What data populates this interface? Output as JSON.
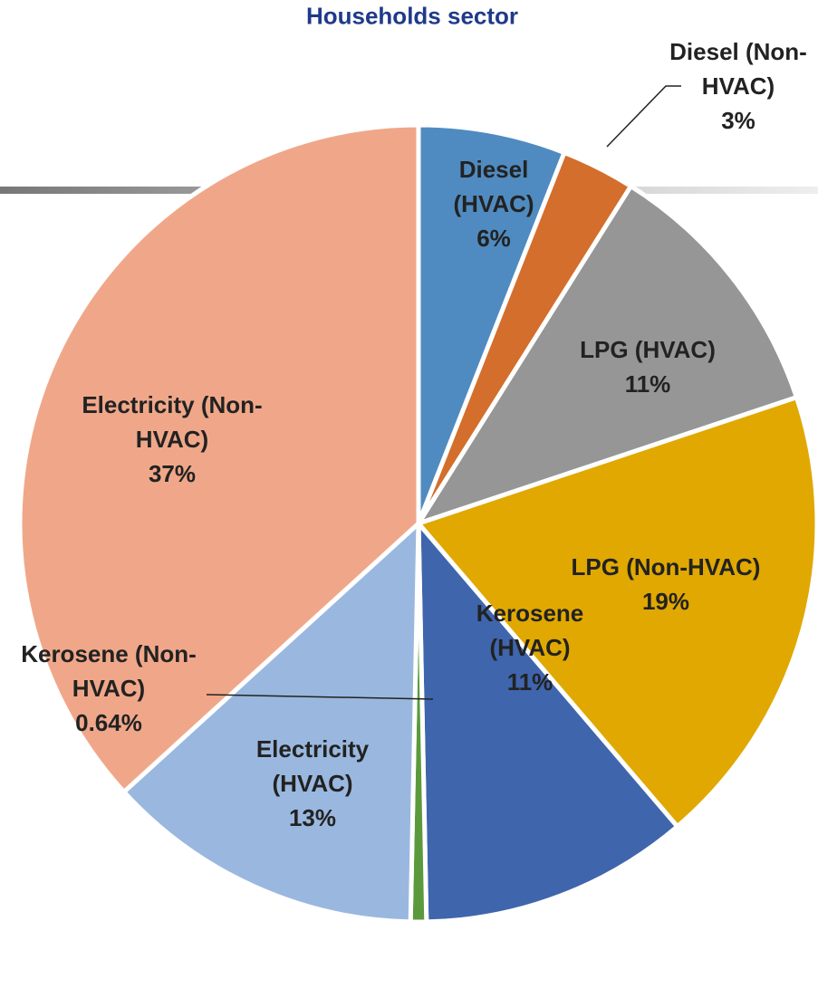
{
  "chart_data": {
    "type": "pie",
    "title": "Households sector",
    "categories": [
      "Diesel (HVAC)",
      "Diesel (Non-HVAC)",
      "LPG (HVAC)",
      "LPG (Non-HVAC)",
      "Kerosene (HVAC)",
      "Kerosene (Non-HVAC)",
      "Electricity (HVAC)",
      "Electricity (Non-HVAC)"
    ],
    "values": [
      6,
      3,
      11,
      19,
      11,
      0.64,
      13,
      37
    ],
    "value_labels": [
      "6%",
      "3%",
      "11%",
      "19%",
      "11%",
      "0.64%",
      "13%",
      "37%"
    ],
    "colors": [
      "#4f8bc0",
      "#d46e2c",
      "#969696",
      "#e0a800",
      "#3f65ad",
      "#5b9a3c",
      "#9ab8df",
      "#f0a789"
    ]
  }
}
